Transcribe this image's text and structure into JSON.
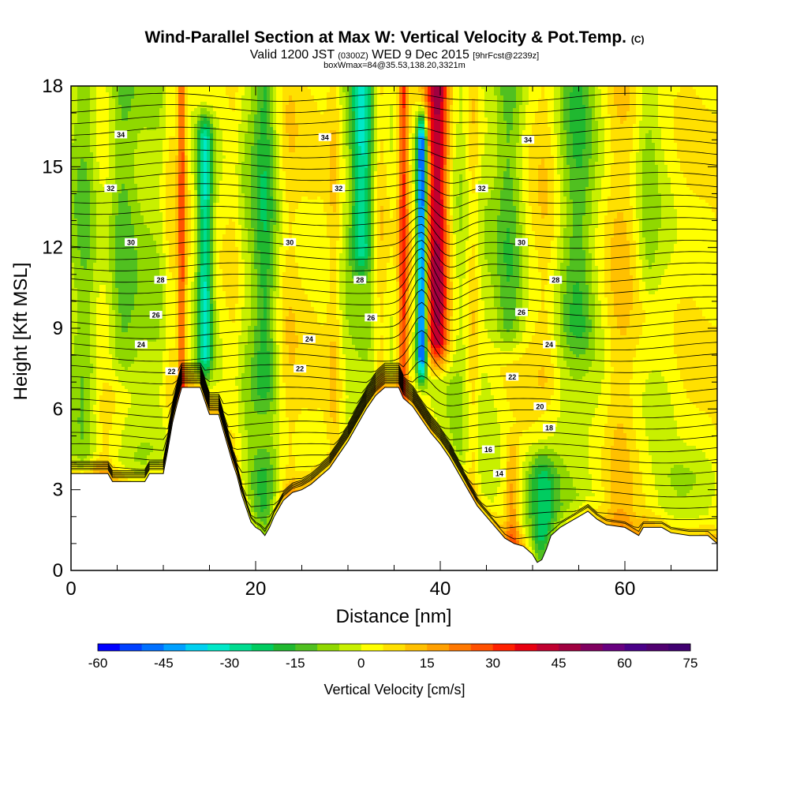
{
  "header": {
    "title": "Wind-Parallel Section at Max W: Vertical Velocity & Pot.Temp.",
    "copyright": "(C)",
    "valid_main": "Valid 1200 JST",
    "valid_utc": "(0300Z)",
    "valid_date": "WED 9 Dec 2015",
    "forecast": "[9hrFcst@2239z]",
    "subtitle": "boxWmax=84@35.53,138.20,3321m"
  },
  "chart_data": {
    "type": "heatmap",
    "xlabel": "Distance [nm]",
    "ylabel": "Height [Kft MSL]",
    "xlim": [
      0,
      70
    ],
    "ylim": [
      0,
      18
    ],
    "x_ticks": [
      0,
      20,
      40,
      60
    ],
    "y_ticks": [
      0,
      3,
      6,
      9,
      12,
      15,
      18
    ],
    "colorbar": {
      "label": "Vertical Velocity [cm/s]",
      "min": -60,
      "max": 75,
      "step": 5,
      "tick_labels": [
        -60,
        -45,
        -30,
        -15,
        0,
        15,
        30,
        45,
        60,
        75
      ],
      "colors": [
        "#0000ff",
        "#0040ff",
        "#0070ff",
        "#00a0ff",
        "#00d0f0",
        "#00e8c8",
        "#00dc90",
        "#00cc60",
        "#20b830",
        "#50c020",
        "#90d800",
        "#c8f000",
        "#ffff00",
        "#ffe000",
        "#ffc000",
        "#ffa000",
        "#ff7800",
        "#ff5000",
        "#ff2000",
        "#e80010",
        "#c00030",
        "#a00040",
        "#800060",
        "#680080",
        "#4a0088",
        "#500070",
        "#400070"
      ]
    },
    "terrain_kft": [
      [
        0,
        3.6
      ],
      [
        4,
        3.6
      ],
      [
        4.5,
        3.3
      ],
      [
        8,
        3.3
      ],
      [
        8.5,
        3.6
      ],
      [
        10,
        3.6
      ],
      [
        10.5,
        4.5
      ],
      [
        11,
        5.5
      ],
      [
        11.5,
        6.2
      ],
      [
        12,
        6.8
      ],
      [
        14,
        6.8
      ],
      [
        14.5,
        6.3
      ],
      [
        15,
        5.8
      ],
      [
        16,
        5.8
      ],
      [
        16.5,
        5.2
      ],
      [
        17,
        4.6
      ],
      [
        17.5,
        4.0
      ],
      [
        18,
        3.5
      ],
      [
        18.5,
        2.8
      ],
      [
        19,
        2.3
      ],
      [
        19.5,
        1.8
      ],
      [
        20,
        1.6
      ],
      [
        20.5,
        1.5
      ],
      [
        21,
        1.3
      ],
      [
        21.5,
        1.6
      ],
      [
        22,
        2.0
      ],
      [
        23,
        2.6
      ],
      [
        24,
        2.9
      ],
      [
        25,
        3.0
      ],
      [
        26,
        3.2
      ],
      [
        27,
        3.5
      ],
      [
        28,
        3.8
      ],
      [
        29,
        4.3
      ],
      [
        30,
        4.8
      ],
      [
        31,
        5.4
      ],
      [
        32,
        6.0
      ],
      [
        33,
        6.5
      ],
      [
        34,
        6.8
      ],
      [
        35.5,
        6.8
      ],
      [
        36,
        6.4
      ],
      [
        37,
        6.1
      ],
      [
        38,
        5.6
      ],
      [
        39,
        5.1
      ],
      [
        40,
        4.7
      ],
      [
        41,
        4.2
      ],
      [
        42,
        3.6
      ],
      [
        43,
        3.0
      ],
      [
        44,
        2.4
      ],
      [
        45,
        2.0
      ],
      [
        46,
        1.6
      ],
      [
        47,
        1.2
      ],
      [
        48,
        1.0
      ],
      [
        49,
        0.9
      ],
      [
        50,
        0.6
      ],
      [
        50.5,
        0.3
      ],
      [
        51,
        0.4
      ],
      [
        51.5,
        0.8
      ],
      [
        52,
        1.3
      ],
      [
        53,
        1.6
      ],
      [
        54,
        1.8
      ],
      [
        55,
        2.0
      ],
      [
        56,
        2.2
      ],
      [
        57,
        1.9
      ],
      [
        58,
        1.7
      ],
      [
        60,
        1.6
      ],
      [
        61.5,
        1.3
      ],
      [
        62,
        1.6
      ],
      [
        64,
        1.6
      ],
      [
        65,
        1.4
      ],
      [
        67,
        1.3
      ],
      [
        69,
        1.3
      ],
      [
        70,
        1.0
      ]
    ],
    "updrafts": [
      {
        "x": 2.5,
        "w": 1.4,
        "amp": 6,
        "zmin": 4,
        "zmax": 18
      },
      {
        "x": 10.8,
        "w": 0.8,
        "amp": 8,
        "zmin": 6.5,
        "zmax": 18
      },
      {
        "x": 12.0,
        "w": 0.45,
        "amp": 26,
        "zmin": 7,
        "zmax": 18
      },
      {
        "x": 17.6,
        "w": 0.9,
        "amp": 6,
        "zmin": 4,
        "zmax": 18
      },
      {
        "x": 23.5,
        "w": 1.2,
        "amp": 6,
        "zmin": 3,
        "zmax": 18
      },
      {
        "x": 28.5,
        "w": 0.8,
        "amp": 9,
        "zmin": 5,
        "zmax": 18
      },
      {
        "x": 33.5,
        "w": 0.8,
        "amp": 10,
        "zmin": 6,
        "zmax": 18
      },
      {
        "x": 36.0,
        "w": 0.5,
        "amp": 28,
        "zmin": 7,
        "zmax": 18
      },
      {
        "x": 39.7,
        "w": 1.25,
        "amp": 44,
        "zmin": 8.5,
        "zmax": 18
      },
      {
        "x": 43.5,
        "w": 0.8,
        "amp": 12,
        "zmin": 3,
        "zmax": 18
      },
      {
        "x": 47.8,
        "w": 0.7,
        "amp": 14,
        "zmin": 1,
        "zmax": 4
      },
      {
        "x": 51.5,
        "w": 1.4,
        "amp": 8,
        "zmin": 7,
        "zmax": 18
      },
      {
        "x": 59.5,
        "w": 1.5,
        "amp": 6,
        "zmin": 2,
        "zmax": 18
      },
      {
        "x": 66.5,
        "w": 2.5,
        "amp": 9,
        "zmin": 5,
        "zmax": 18
      },
      {
        "x": 3.0,
        "w": 2.0,
        "amp": 6,
        "zmin": 3,
        "zmax": 6
      }
    ],
    "downdrafts": [
      {
        "x": 1.8,
        "w": 1.6,
        "amp": 18,
        "zmin": 4,
        "zmax": 18
      },
      {
        "x": 5.5,
        "w": 1.5,
        "amp": 12,
        "zmin": 8,
        "zmax": 18
      },
      {
        "x": 14.5,
        "w": 0.9,
        "amp": 36,
        "zmin": 8,
        "zmax": 16
      },
      {
        "x": 21.0,
        "w": 1.2,
        "amp": 14,
        "zmin": 7,
        "zmax": 18
      },
      {
        "x": 20.8,
        "w": 1.5,
        "amp": 14,
        "zmin": 1,
        "zmax": 3.5
      },
      {
        "x": 31.5,
        "w": 1.1,
        "amp": 26,
        "zmin": 12,
        "zmax": 18
      },
      {
        "x": 38.0,
        "w": 0.55,
        "amp": 60,
        "zmin": 8,
        "zmax": 16
      },
      {
        "x": 47.5,
        "w": 1.6,
        "amp": 17,
        "zmin": 9,
        "zmax": 18
      },
      {
        "x": 51.0,
        "w": 1.6,
        "amp": 22,
        "zmin": 0,
        "zmax": 3.5
      },
      {
        "x": 55.0,
        "w": 1.6,
        "amp": 10,
        "zmin": 9,
        "zmax": 18
      },
      {
        "x": 62.5,
        "w": 1.2,
        "amp": 8,
        "zmin": 11,
        "zmax": 18
      }
    ],
    "isentrope_labels": [
      {
        "value": "34",
        "x": 5.4,
        "y": 16.2
      },
      {
        "value": "34",
        "x": 27.5,
        "y": 16.1
      },
      {
        "value": "34",
        "x": 49.5,
        "y": 16.0
      },
      {
        "value": "32",
        "x": 4.3,
        "y": 14.2
      },
      {
        "value": "32",
        "x": 29.0,
        "y": 14.2
      },
      {
        "value": "32",
        "x": 44.5,
        "y": 14.2
      },
      {
        "value": "30",
        "x": 6.5,
        "y": 12.2
      },
      {
        "value": "30",
        "x": 23.7,
        "y": 12.2
      },
      {
        "value": "30",
        "x": 48.8,
        "y": 12.2
      },
      {
        "value": "28",
        "x": 9.7,
        "y": 10.8
      },
      {
        "value": "28",
        "x": 31.3,
        "y": 10.8
      },
      {
        "value": "28",
        "x": 52.5,
        "y": 10.8
      },
      {
        "value": "26",
        "x": 9.2,
        "y": 9.5
      },
      {
        "value": "26",
        "x": 32.5,
        "y": 9.4
      },
      {
        "value": "26",
        "x": 48.8,
        "y": 9.6
      },
      {
        "value": "24",
        "x": 7.6,
        "y": 8.4
      },
      {
        "value": "24",
        "x": 25.8,
        "y": 8.6
      },
      {
        "value": "24",
        "x": 51.8,
        "y": 8.4
      },
      {
        "value": "22",
        "x": 10.9,
        "y": 7.4
      },
      {
        "value": "22",
        "x": 24.8,
        "y": 7.5
      },
      {
        "value": "22",
        "x": 47.8,
        "y": 7.2
      },
      {
        "value": "20",
        "x": 50.8,
        "y": 6.1
      },
      {
        "value": "18",
        "x": 51.8,
        "y": 5.3
      },
      {
        "value": "16",
        "x": 45.2,
        "y": 4.5
      },
      {
        "value": "14",
        "x": 46.4,
        "y": 3.6
      }
    ]
  }
}
